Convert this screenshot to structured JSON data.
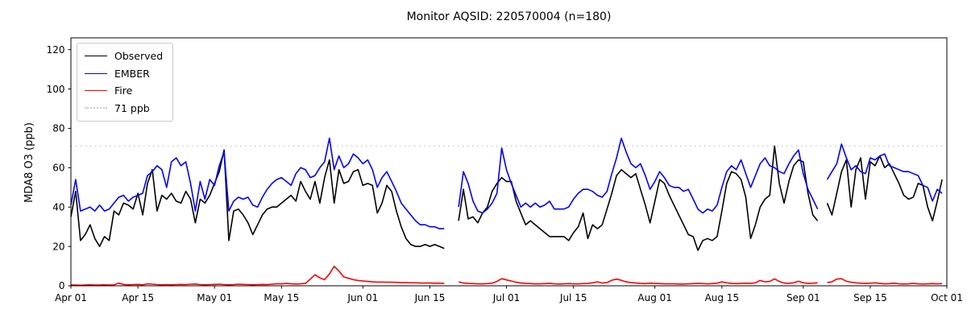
{
  "chart_data": {
    "type": "line",
    "title": "Monitor AQSID: 220570004 (n=180)",
    "y_axis": {
      "label": "MDA8 O3 (ppb)",
      "ticks": [
        0,
        20,
        40,
        60,
        80,
        100,
        120
      ],
      "min": 0,
      "view_max": 126
    },
    "x_axis": {
      "range_days": 183,
      "start_date": "Apr 01",
      "end_date": "Oct 01",
      "ticks": [
        {
          "label": "Apr 01",
          "day": 0
        },
        {
          "label": "Apr 15",
          "day": 14
        },
        {
          "label": "May 01",
          "day": 30
        },
        {
          "label": "May 15",
          "day": 44
        },
        {
          "label": "Jun 01",
          "day": 61
        },
        {
          "label": "Jun 15",
          "day": 75
        },
        {
          "label": "Jul 01",
          "day": 91
        },
        {
          "label": "Jul 15",
          "day": 105
        },
        {
          "label": "Aug 01",
          "day": 122
        },
        {
          "label": "Aug 15",
          "day": 136
        },
        {
          "label": "Sep 01",
          "day": 153
        },
        {
          "label": "Sep 15",
          "day": 167
        },
        {
          "label": "Oct 01",
          "day": 183
        }
      ]
    },
    "threshold": {
      "label": "71 ppb",
      "value": 71,
      "color": "#c8c8c8",
      "style": "dotted"
    },
    "legend_position": "upper-left",
    "grid": false,
    "missing_days": [
      "Jun 19",
      "Jun 20",
      "Sep 05"
    ],
    "n_points": 180,
    "series": [
      {
        "name": "Observed",
        "color": "#000000",
        "values": [
          35,
          48,
          23,
          26,
          31,
          24,
          20,
          25,
          23,
          38,
          36,
          42,
          41,
          39,
          47,
          36,
          52,
          59,
          38,
          46,
          44,
          47,
          43,
          42,
          48,
          44,
          32,
          44,
          42,
          46,
          52,
          58,
          69,
          23,
          38,
          39,
          36,
          32,
          26,
          31,
          36,
          39,
          40,
          40,
          42,
          44,
          46,
          43,
          53,
          48,
          44,
          53,
          42,
          55,
          64,
          42,
          59,
          52,
          53,
          58,
          59,
          51,
          52,
          51,
          37,
          42,
          51,
          48,
          38,
          30,
          24,
          21,
          20,
          20,
          21,
          20,
          21,
          20,
          19,
          null,
          null,
          33,
          49,
          34,
          35,
          32,
          37,
          40,
          48,
          52,
          55,
          53,
          53,
          43,
          37,
          31,
          33,
          31,
          29,
          27,
          25,
          25,
          25,
          25,
          23,
          27,
          30,
          37,
          24,
          31,
          29,
          31,
          39,
          47,
          56,
          59,
          57,
          55,
          57,
          49,
          41,
          32,
          43,
          54,
          52,
          46,
          41,
          36,
          31,
          26,
          25,
          18,
          23,
          24,
          23,
          25,
          38,
          52,
          58,
          57,
          54,
          45,
          24,
          31,
          40,
          44,
          46,
          71,
          52,
          42,
          53,
          61,
          64,
          63,
          47,
          36,
          33,
          null,
          42,
          36,
          47,
          58,
          64,
          40,
          59,
          65,
          44,
          63,
          61,
          66,
          60,
          62,
          57,
          52,
          46,
          44,
          45,
          52,
          51,
          40,
          33,
          43,
          54
        ]
      },
      {
        "name": "EMBER",
        "color": "#0000ff",
        "values": [
          41,
          54,
          38,
          39,
          40,
          38,
          41,
          38,
          39,
          42,
          45,
          46,
          43,
          45,
          46,
          47,
          56,
          58,
          61,
          59,
          50,
          63,
          65,
          61,
          63,
          52,
          38,
          53,
          44,
          54,
          51,
          61,
          68,
          38,
          43,
          45,
          44,
          45,
          41,
          40,
          45,
          49,
          52,
          54,
          55,
          53,
          51,
          57,
          60,
          59,
          55,
          56,
          60,
          63,
          75,
          59,
          66,
          60,
          62,
          67,
          65,
          62,
          64,
          59,
          50,
          55,
          58,
          53,
          48,
          42,
          39,
          36,
          33,
          31,
          31,
          30,
          30,
          29,
          29,
          null,
          null,
          40,
          58,
          52,
          43,
          38,
          37,
          39,
          42,
          47,
          70,
          59,
          52,
          46,
          40,
          42,
          40,
          42,
          40,
          41,
          43,
          39,
          39,
          39,
          40,
          44,
          47,
          49,
          49,
          48,
          46,
          45,
          48,
          57,
          65,
          75,
          68,
          62,
          60,
          62,
          56,
          49,
          53,
          58,
          55,
          51,
          50,
          50,
          48,
          49,
          44,
          39,
          37,
          39,
          38,
          41,
          50,
          58,
          61,
          59,
          64,
          57,
          50,
          56,
          62,
          65,
          61,
          60,
          58,
          57,
          62,
          66,
          69,
          57,
          49,
          44,
          39,
          null,
          54,
          58,
          62,
          72,
          65,
          59,
          61,
          58,
          57,
          65,
          64,
          66,
          67,
          61,
          60,
          59,
          58,
          58,
          57,
          56,
          51,
          50,
          43,
          49,
          47
        ]
      },
      {
        "name": "Fire",
        "color": "#ff0000",
        "values": [
          0.4,
          0.4,
          0.3,
          0.4,
          0.5,
          0.4,
          0.4,
          0.5,
          0.4,
          0.5,
          1.3,
          0.7,
          0.5,
          0.6,
          0.7,
          0.5,
          1.0,
          0.8,
          0.6,
          0.5,
          0.6,
          0.5,
          0.6,
          0.7,
          0.6,
          0.8,
          0.9,
          0.6,
          0.5,
          0.6,
          0.7,
          0.8,
          0.6,
          0.5,
          0.6,
          0.8,
          0.7,
          0.6,
          0.5,
          0.6,
          0.7,
          0.6,
          0.8,
          1.0,
          1.0,
          1.2,
          1.0,
          0.9,
          1.0,
          1.2,
          3.4,
          5.6,
          4.0,
          3.1,
          6.0,
          9.9,
          7.5,
          4.5,
          3.8,
          3.1,
          2.7,
          2.4,
          2.2,
          2.0,
          1.9,
          1.9,
          1.8,
          1.8,
          1.7,
          1.6,
          1.6,
          1.5,
          1.5,
          1.4,
          1.4,
          1.4,
          1.3,
          1.3,
          1.2,
          null,
          null,
          2.0,
          1.4,
          1.2,
          1.1,
          1.0,
          1.0,
          1.1,
          1.3,
          2.2,
          3.6,
          3.0,
          2.4,
          1.8,
          1.4,
          1.2,
          1.1,
          1.0,
          1.0,
          1.1,
          1.2,
          1.0,
          0.9,
          1.0,
          1.1,
          1.0,
          1.0,
          1.1,
          1.2,
          1.5,
          2.0,
          1.4,
          1.6,
          2.8,
          3.4,
          2.8,
          2.0,
          1.6,
          1.4,
          1.2,
          1.1,
          1.3,
          1.2,
          1.1,
          1.0,
          1.0,
          1.0,
          0.9,
          0.9,
          1.0,
          1.1,
          1.2,
          1.1,
          1.0,
          1.1,
          1.3,
          2.0,
          1.5,
          1.2,
          1.1,
          1.2,
          1.3,
          1.2,
          1.5,
          2.7,
          2.0,
          2.2,
          3.5,
          2.2,
          1.4,
          1.2,
          1.5,
          2.3,
          1.5,
          1.2,
          1.3,
          1.5,
          null,
          1.6,
          2.0,
          3.4,
          3.6,
          2.3,
          1.8,
          1.5,
          1.3,
          1.2,
          1.3,
          1.5,
          1.2,
          1.0,
          1.1,
          1.3,
          1.0,
          0.9,
          1.0,
          1.2,
          1.0,
          0.9,
          1.0,
          1.1,
          1.0,
          1.1
        ]
      }
    ],
    "legend": {
      "observed_label": "Observed",
      "ember_label": "EMBER",
      "fire_label": "Fire",
      "threshold_label": "71 ppb"
    }
  }
}
